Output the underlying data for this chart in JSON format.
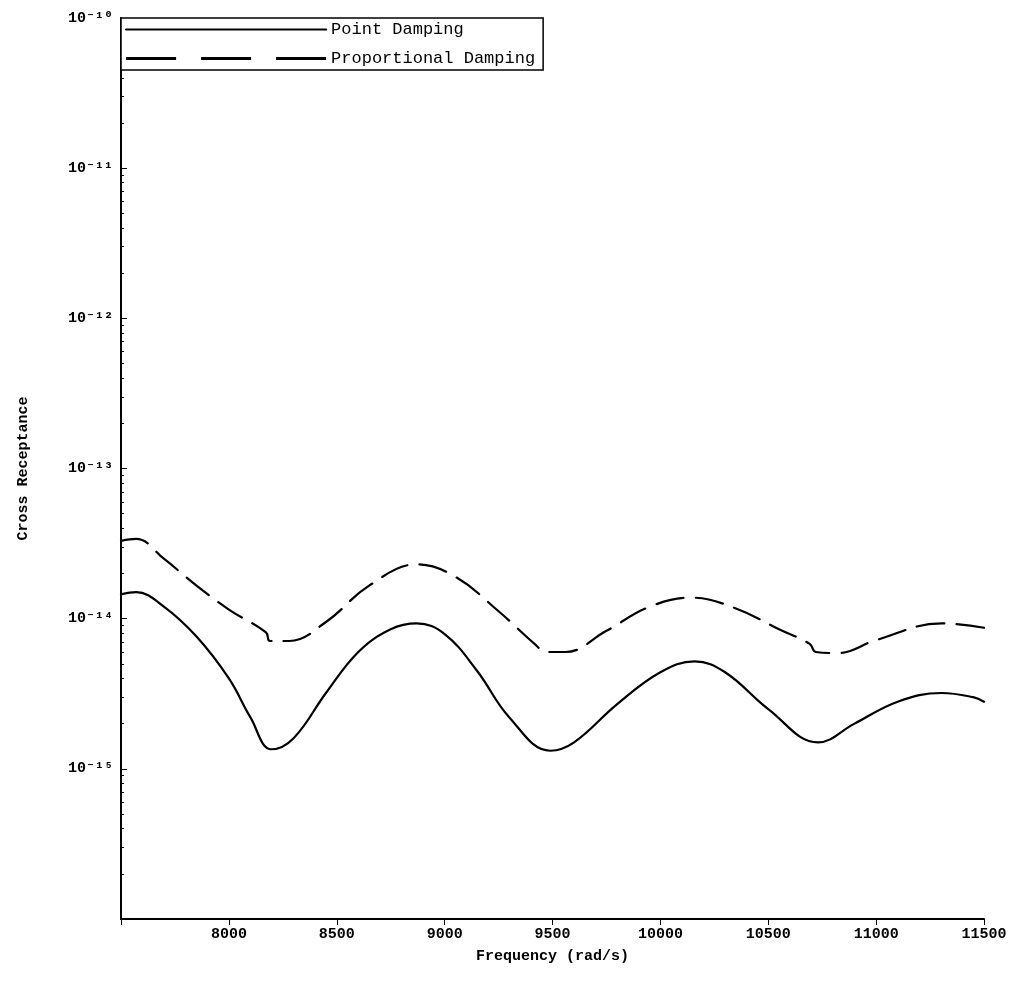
{
  "chart_data": {
    "type": "line",
    "xlabel": "Frequency (rad/s)",
    "ylabel": "Cross Receptance",
    "log": "y",
    "grid": false,
    "legend": "top left",
    "marker": "none",
    "xlim": [
      7500,
      11500
    ],
    "xticks": [
      {
        "value": 7500,
        "label": null
      },
      8000,
      8500,
      9000,
      9500,
      10000,
      10500,
      11000,
      11500
    ],
    "ylim": [
      1e-16,
      1e-10
    ],
    "yticks": [
      {
        "value": 1e-16,
        "label": null
      },
      {
        "value": 1e-15,
        "label": "10⁻¹⁵"
      },
      {
        "value": 1e-14,
        "label": "10⁻¹⁴"
      },
      {
        "value": 1e-13,
        "label": "10⁻¹³"
      },
      {
        "value": 1e-12,
        "label": "10⁻¹²"
      },
      {
        "value": 1e-11,
        "label": "10⁻¹¹"
      },
      {
        "value": 1e-10,
        "label": "10⁻¹⁰"
      }
    ],
    "series": [
      {
        "name": "Point Damping",
        "color": "#000000",
        "line_style": "solid",
        "x": [
          7500,
          7570,
          7700,
          7850,
          8000,
          8100,
          8197,
          8300,
          8450,
          8600,
          8750,
          8871,
          9000,
          9150,
          9300,
          9489,
          9600,
          9800,
          10000,
          10159,
          10300,
          10500,
          10731,
          10900,
          11100,
          11303,
          11450,
          11500
        ],
        "values": [
          1.45e-14,
          1.5e-14,
          1.2e-14,
          7.6e-15,
          4e-15,
          2.2e-15,
          1.35e-15,
          1.6e-15,
          3.2e-15,
          6e-15,
          8.5e-15,
          9.3e-15,
          7.9e-15,
          4.5e-15,
          2.2e-15,
          1.32e-15,
          1.5e-15,
          2.7e-15,
          4.4e-15,
          5.2e-15,
          4.4e-15,
          2.5e-15,
          1.5e-15,
          2e-15,
          2.8e-15,
          3.2e-15,
          3e-15,
          2.8e-15
        ]
      },
      {
        "name": "Proportional Damping",
        "color": "#000000",
        "line_style": "dashed",
        "x": [
          7500,
          7570,
          7700,
          7850,
          8000,
          8172,
          8190,
          8280,
          8450,
          8650,
          8871,
          9050,
          9250,
          9417,
          9470,
          9560,
          9750,
          9950,
          10146,
          10350,
          10550,
          10692,
          10720,
          10823,
          11000,
          11303,
          11500
        ],
        "values": [
          3.3e-14,
          3.4e-14,
          2.5e-14,
          1.66e-14,
          1.15e-14,
          8.1e-15,
          7.1e-15,
          7.1e-15,
          9.5e-15,
          1.66e-14,
          2.3e-14,
          1.9e-14,
          1.12e-14,
          6.8e-15,
          6e-15,
          6e-15,
          8.3e-15,
          1.2e-14,
          1.38e-14,
          1.17e-14,
          8.5e-15,
          6.8e-15,
          6e-15,
          5.9e-15,
          7.2e-15,
          9.3e-15,
          8.7e-15
        ]
      }
    ]
  }
}
